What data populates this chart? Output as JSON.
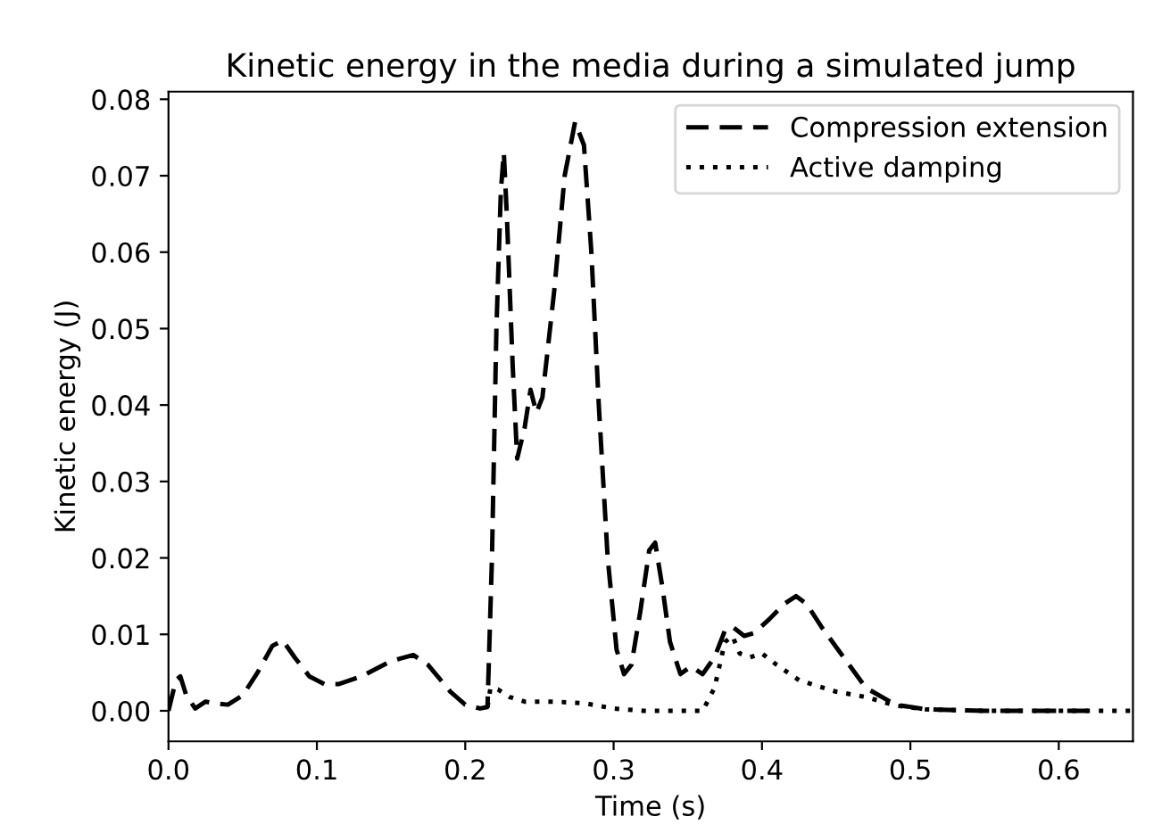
{
  "chart_data": {
    "type": "line",
    "title": "Kinetic energy in the media during a simulated jump",
    "xlabel": "Time (s)",
    "ylabel": "Kinetic energy (J)",
    "xlim": [
      0,
      0.65
    ],
    "ylim": [
      -0.004,
      0.081
    ],
    "xticks": [
      {
        "value": 0,
        "label": "0.0"
      },
      0.1,
      0.2,
      0.3,
      0.4,
      0.5,
      0.6
    ],
    "yticks": [
      {
        "value": 0,
        "label": "0.00"
      },
      0.01,
      0.02,
      0.03,
      0.04,
      0.05,
      0.06,
      0.07,
      0.08
    ],
    "grid": false,
    "legend": "top right",
    "series": [
      {
        "name": "Compression extension",
        "color": "#000000",
        "line_style": "dashed",
        "x": [
          0,
          0.005,
          0.008,
          0.012,
          0.018,
          0.025,
          0.03,
          0.04,
          0.05,
          0.06,
          0.07,
          0.077,
          0.085,
          0.095,
          0.105,
          0.115,
          0.13,
          0.15,
          0.165,
          0.175,
          0.19,
          0.2,
          0.21,
          0.215,
          0.218,
          0.221,
          0.224,
          0.226,
          0.228,
          0.232,
          0.235,
          0.24,
          0.244,
          0.248,
          0.252,
          0.26,
          0.267,
          0.274,
          0.28,
          0.285,
          0.29,
          0.296,
          0.302,
          0.307,
          0.312,
          0.318,
          0.324,
          0.328,
          0.333,
          0.338,
          0.345,
          0.352,
          0.36,
          0.368,
          0.375,
          0.38,
          0.388,
          0.395,
          0.405,
          0.415,
          0.423,
          0.43,
          0.44,
          0.455,
          0.47,
          0.49,
          0.51,
          0.55,
          0.62
        ],
        "values": [
          0,
          0.004,
          0.0045,
          0.002,
          0.0003,
          0.0012,
          0.001,
          0.0008,
          0.002,
          0.005,
          0.0085,
          0.0092,
          0.007,
          0.0045,
          0.0035,
          0.0035,
          0.0045,
          0.0065,
          0.0073,
          0.006,
          0.0025,
          0.0008,
          0.0003,
          0.0005,
          0.02,
          0.05,
          0.068,
          0.073,
          0.065,
          0.045,
          0.033,
          0.037,
          0.042,
          0.039,
          0.041,
          0.055,
          0.07,
          0.077,
          0.074,
          0.06,
          0.04,
          0.02,
          0.008,
          0.0048,
          0.006,
          0.013,
          0.021,
          0.022,
          0.016,
          0.009,
          0.0048,
          0.0058,
          0.0048,
          0.007,
          0.0105,
          0.011,
          0.0098,
          0.0102,
          0.012,
          0.014,
          0.015,
          0.014,
          0.011,
          0.007,
          0.003,
          0.0008,
          0.0002,
          0,
          0
        ]
      },
      {
        "name": "Active damping",
        "color": "#000000",
        "line_style": "dotted",
        "x": [
          0.215,
          0.217,
          0.222,
          0.23,
          0.24,
          0.26,
          0.28,
          0.3,
          0.32,
          0.36,
          0.368,
          0.375,
          0.38,
          0.385,
          0.392,
          0.4,
          0.41,
          0.425,
          0.45,
          0.47,
          0.49,
          0.51,
          0.55,
          0.65
        ],
        "values": [
          0.0005,
          0.003,
          0.0028,
          0.0018,
          0.0012,
          0.0012,
          0.001,
          0.0003,
          0,
          0,
          0.003,
          0.009,
          0.0098,
          0.0075,
          0.007,
          0.0075,
          0.006,
          0.004,
          0.0025,
          0.0018,
          0.0007,
          0.0002,
          0,
          0
        ]
      }
    ]
  }
}
